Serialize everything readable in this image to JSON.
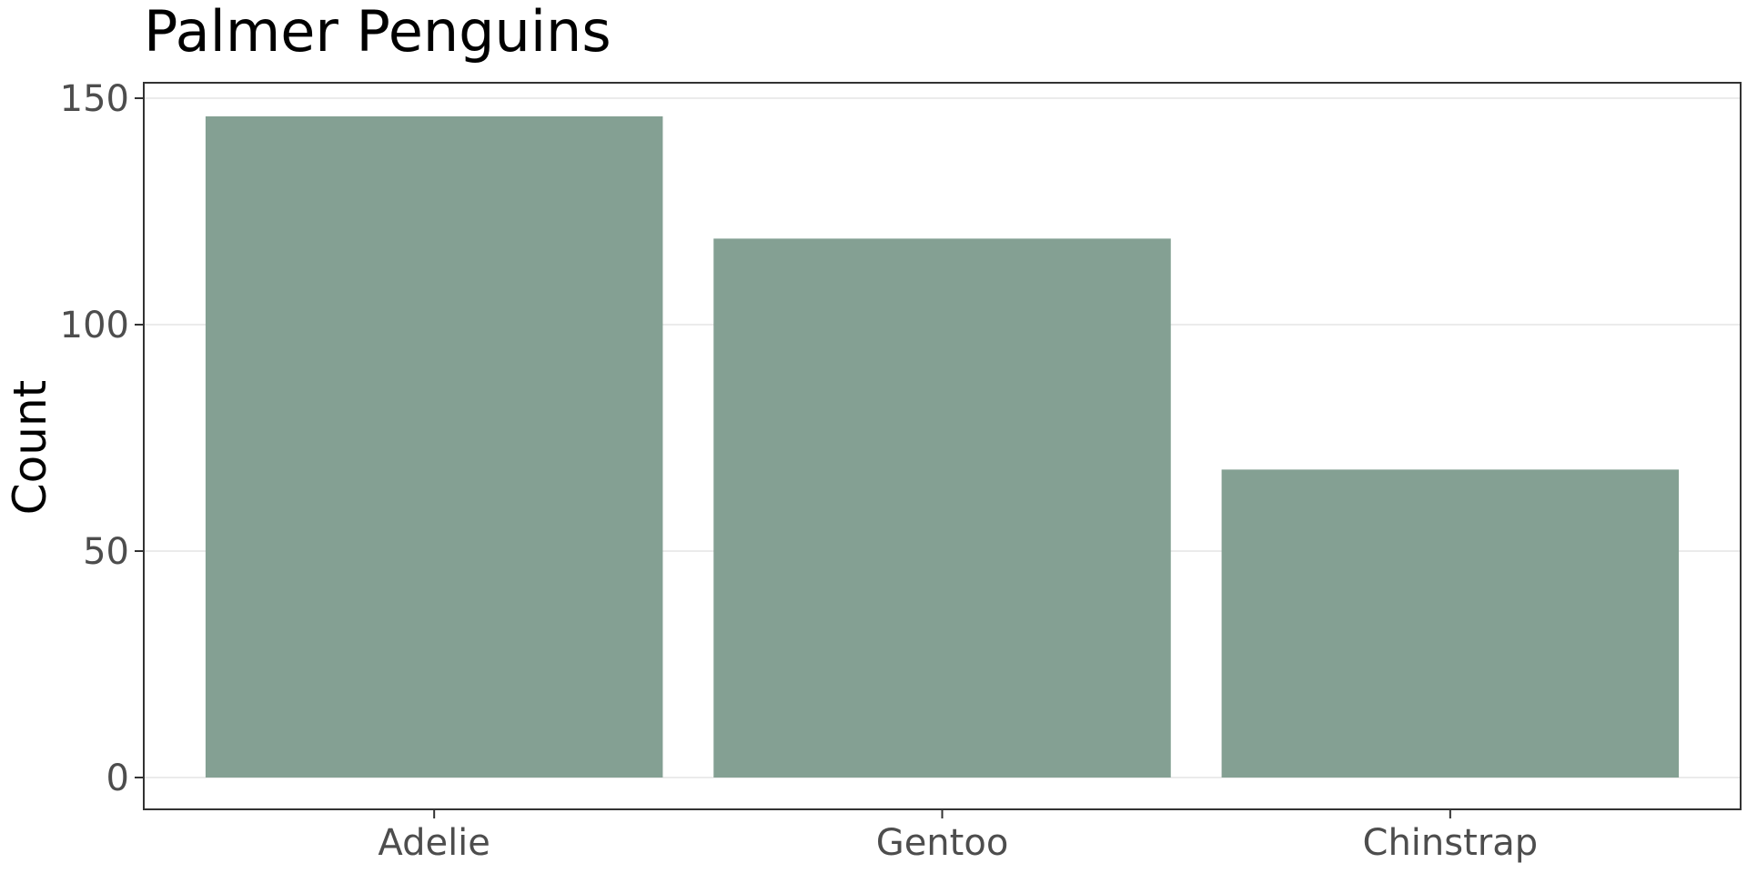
{
  "chart_data": {
    "type": "bar",
    "title": "Palmer Penguins",
    "xlabel": "",
    "ylabel": "Count",
    "categories": [
      "Adelie",
      "Gentoo",
      "Chinstrap"
    ],
    "values": [
      146,
      119,
      68
    ],
    "ylim": [
      0,
      157
    ],
    "yticks": [
      0,
      50,
      100,
      150
    ],
    "ytick_labels": [
      "0",
      "50",
      "100",
      "150"
    ],
    "grid": true,
    "legend": "none",
    "bar_color": "#84a093",
    "panel_border_color": "#333333",
    "grid_color": "#ebebeb",
    "tick_label_color": "#4d4d4d"
  }
}
